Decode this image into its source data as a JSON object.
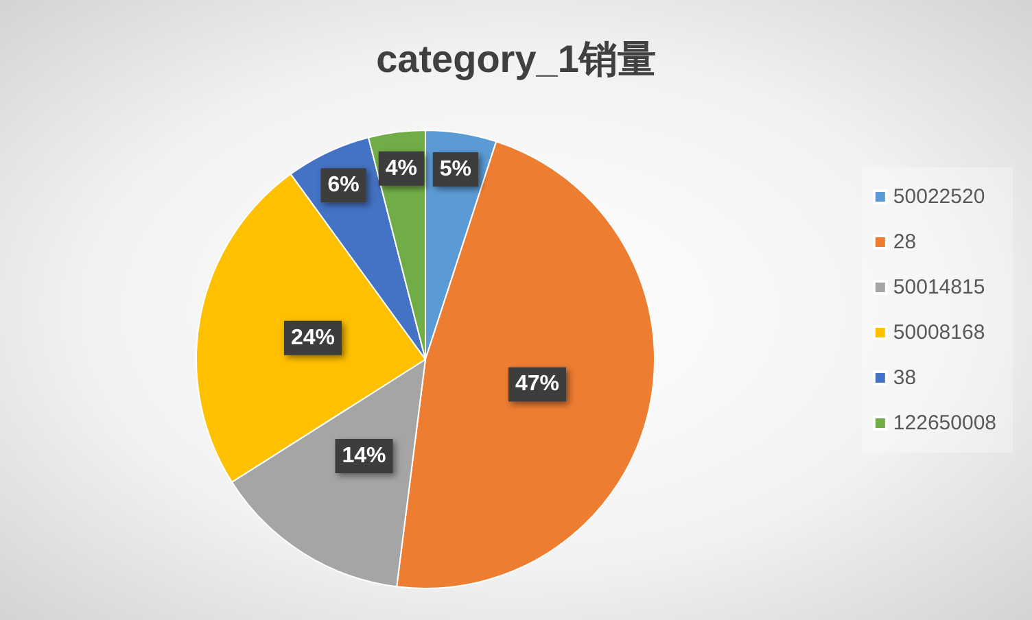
{
  "chart_data": {
    "type": "pie",
    "title": "category_1销量",
    "categories": [
      "50022520",
      "28",
      "50014815",
      "50008168",
      "38",
      "122650008"
    ],
    "values": [
      5,
      47,
      14,
      24,
      6,
      4
    ],
    "colors": [
      "#5b9bd5",
      "#ed7d31",
      "#a5a5a5",
      "#ffc000",
      "#4472c4",
      "#70ad47"
    ],
    "value_labels": [
      "5%",
      "47%",
      "14%",
      "24%",
      "6%",
      "4%"
    ],
    "legend": "right"
  }
}
